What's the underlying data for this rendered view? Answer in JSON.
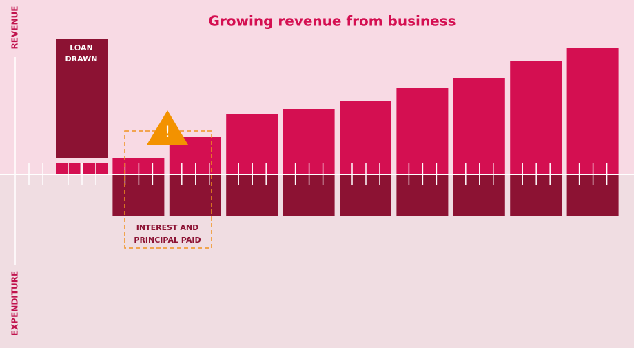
{
  "chart_data": {
    "type": "bar",
    "title": "Growing revenue from business",
    "y_label_top": "REVENUE",
    "y_label_bottom": "EXPENDITURE",
    "ylim": [
      -250,
      250
    ],
    "series": [
      {
        "name": "Revenue",
        "color": "#d40f51",
        "values": [
          16,
          23,
          54,
          87,
          95,
          107,
          125,
          140,
          164,
          183
        ]
      },
      {
        "name": "Expenditure",
        "color": "#8c1233",
        "values": [
          null,
          -60,
          -60,
          -60,
          -60,
          -60,
          -60,
          -60,
          -60,
          -60
        ]
      },
      {
        "name": "Loan",
        "color": "#8c1233",
        "values": [
          172,
          null,
          null,
          null,
          null,
          null,
          null,
          null,
          null,
          null
        ]
      }
    ],
    "annotations": {
      "loan": [
        "LOAN",
        "DRAWN"
      ],
      "repayment": [
        "INTEREST AND",
        "PRINCIPAL PAID"
      ],
      "warning": "!"
    }
  }
}
